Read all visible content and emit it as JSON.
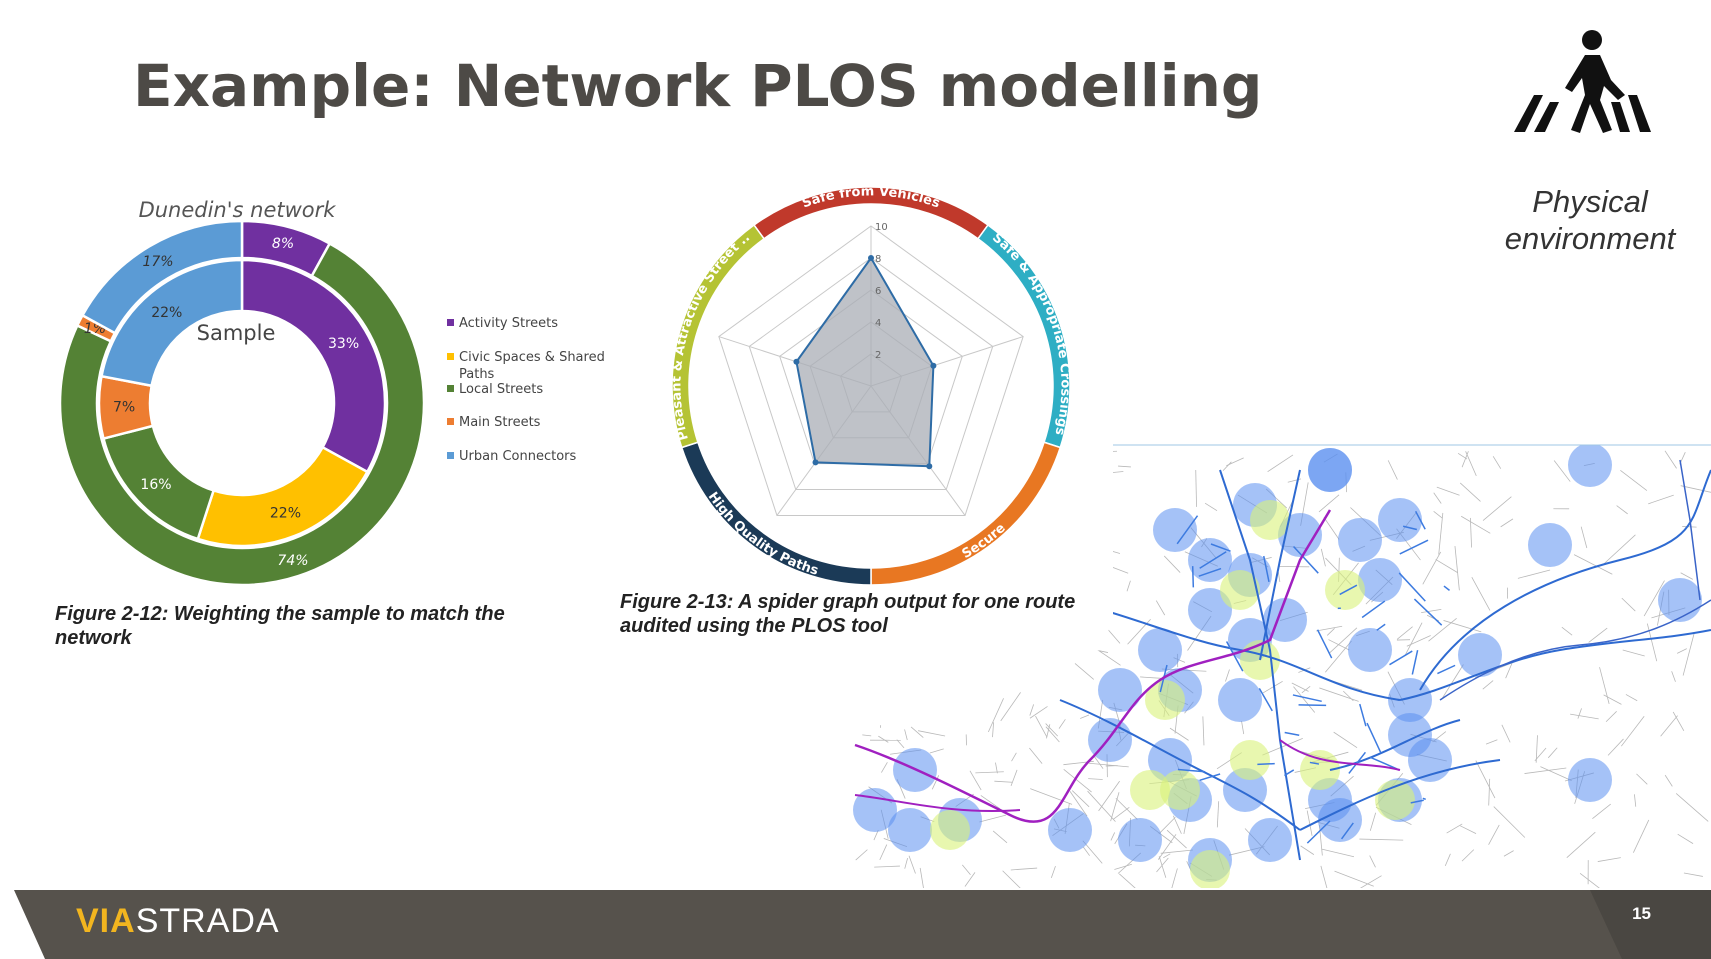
{
  "slide": {
    "title": "Example: Network PLOS modelling",
    "side_label": "Physical environment",
    "page_number": "15",
    "logo": {
      "bold": "VIA",
      "rest": "STRADA"
    }
  },
  "colors": {
    "activity": "#7030a0",
    "civic": "#ffc000",
    "local": "#548235",
    "main": "#ed7d31",
    "urban": "#5b9bd5",
    "footer": "#56524c"
  },
  "chart_data": [
    {
      "type": "pie",
      "subtype": "nested-donut",
      "title": "Dunedin's network",
      "center_label": "Sample",
      "categories": [
        "Activity Streets",
        "Civic Spaces & Shared Paths",
        "Local Streets",
        "Main Streets",
        "Urban Connectors"
      ],
      "series": [
        {
          "name": "Dunedin's network",
          "ring": "outer",
          "values": [
            8,
            0,
            74,
            1,
            17
          ],
          "labels": [
            "8%",
            "",
            "74%",
            "1%",
            "17%"
          ]
        },
        {
          "name": "Sample",
          "ring": "inner",
          "values": [
            33,
            22,
            16,
            7,
            22
          ],
          "labels": [
            "33%",
            "22%",
            "16%",
            "7%",
            "22%"
          ]
        }
      ],
      "legend": {
        "placement": "right",
        "items": [
          "Activity Streets",
          "Civic Spaces & Shared Paths",
          "Local Streets",
          "Main Streets",
          "Urban Connectors"
        ]
      },
      "caption": "Figure 2-12: Weighting the sample to match the network"
    },
    {
      "type": "radar",
      "axes": [
        "Safe from Vehicles",
        "Safe & Appropriate Crossings",
        "Secure",
        "High Quality Paths",
        "Pleasant & Attractive Street ..."
      ],
      "values": [
        8,
        4.1,
        6.2,
        5.9,
        4.9
      ],
      "range": [
        0,
        10
      ],
      "ticks": [
        "2",
        "4",
        "6",
        "8",
        "10"
      ],
      "axis_colors": [
        "#c0392b",
        "#2eaec4",
        "#e87722",
        "#1b3a57",
        "#b5c334"
      ],
      "caption": "Figure 2-13: A spider graph output for one route audited using the PLOS tool"
    }
  ],
  "map": {
    "description_labels": false
  }
}
